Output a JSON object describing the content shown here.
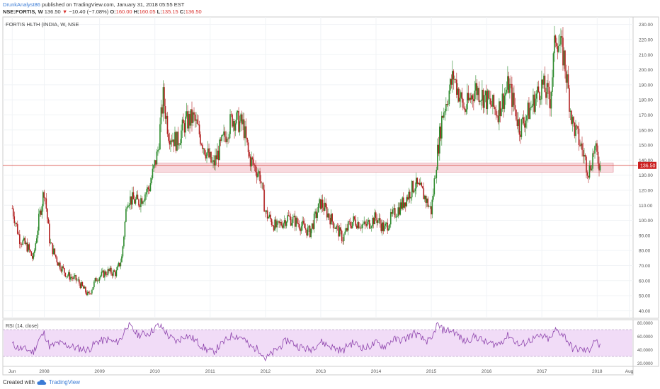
{
  "header": {
    "author": "DrunkAnalyst86",
    "published_text": " published on TradingView.com, January 31, 2018 05:55 EST",
    "symbol": "NSE:FORTIS, W",
    "last": "136.50",
    "change": "−10.40 (−7.08%)",
    "o_label": "O:",
    "o_value": "160.00",
    "h_label": "H:",
    "h_value": "160.05",
    "l_label": "L:",
    "l_value": "135.15",
    "c_label": "C:",
    "c_value": "136.50"
  },
  "footer": {
    "created_with": "Created with",
    "brand": "TradingView"
  },
  "colors": {
    "up": "#2e8b2e",
    "down": "#b22222",
    "rsi_line": "#8e44ad",
    "rsi_band": "#f1dcf7",
    "zone_fill": "#f8dadf",
    "hline": "#d9534f"
  },
  "icons": {
    "footer_logo": "tradingview-cloud-icon",
    "change_arrow": "down-triangle-icon"
  },
  "chart_data": [
    {
      "type": "candlestick",
      "title": "FORTIS HLTH (INDIA, W, NSE",
      "ylim": [
        35,
        235
      ],
      "y_ticks": [
        "40.00",
        "50.00",
        "60.00",
        "70.00",
        "80.00",
        "90.00",
        "100.00",
        "110.00",
        "120.00",
        "130.00",
        "140.00",
        "150.00",
        "160.00",
        "170.00",
        "180.00",
        "190.00",
        "200.00",
        "210.00",
        "220.00",
        "230.00"
      ],
      "x_ticks": [
        "Jun",
        "2008",
        "2009",
        "2010",
        "2011",
        "2012",
        "2013",
        "2014",
        "2015",
        "2016",
        "2017",
        "2018",
        "Aug"
      ],
      "last_price_label": "136.50",
      "horizontal_line": 136.5,
      "support_zone": [
        132,
        138
      ],
      "x": [
        2007.42,
        2007.55,
        2007.7,
        2007.8,
        2007.9,
        2008.0,
        2008.1,
        2008.25,
        2008.4,
        2008.6,
        2008.8,
        2008.95,
        2009.15,
        2009.3,
        2009.4,
        2009.5,
        2009.7,
        2009.9,
        2010.05,
        2010.15,
        2010.25,
        2010.4,
        2010.55,
        2010.7,
        2010.9,
        2011.05,
        2011.2,
        2011.4,
        2011.6,
        2011.7,
        2011.9,
        2012.0,
        2012.2,
        2012.4,
        2012.6,
        2012.8,
        2013.0,
        2013.2,
        2013.4,
        2013.5,
        2013.6,
        2013.8,
        2014.0,
        2014.15,
        2014.3,
        2014.5,
        2014.7,
        2014.85,
        2015.0,
        2015.1,
        2015.2,
        2015.4,
        2015.6,
        2015.8,
        2016.0,
        2016.2,
        2016.4,
        2016.6,
        2016.8,
        2017.0,
        2017.15,
        2017.25,
        2017.4,
        2017.55,
        2017.7,
        2017.85,
        2017.95,
        2018.05
      ],
      "values": [
        108,
        88,
        82,
        74,
        100,
        121,
        85,
        72,
        64,
        60,
        50,
        62,
        66,
        65,
        75,
        115,
        112,
        122,
        145,
        182,
        158,
        152,
        165,
        168,
        148,
        136,
        150,
        168,
        163,
        142,
        130,
        105,
        95,
        102,
        98,
        92,
        112,
        100,
        88,
        96,
        100,
        96,
        102,
        94,
        103,
        112,
        124,
        118,
        106,
        142,
        170,
        196,
        173,
        188,
        180,
        172,
        190,
        161,
        175,
        190,
        180,
        224,
        208,
        165,
        150,
        132,
        148,
        136.5
      ]
    },
    {
      "type": "line",
      "title": "RSI (14, close)",
      "ylim": [
        15,
        85
      ],
      "y_ticks": [
        "20.0000",
        "40.0000",
        "60.0000",
        "80.0000"
      ],
      "band": [
        30,
        70
      ],
      "series": [
        {
          "name": "RSI",
          "x": [
            2007.42,
            2007.55,
            2007.7,
            2007.8,
            2007.9,
            2008.0,
            2008.1,
            2008.25,
            2008.4,
            2008.6,
            2008.8,
            2008.95,
            2009.15,
            2009.3,
            2009.4,
            2009.5,
            2009.7,
            2009.9,
            2010.05,
            2010.15,
            2010.25,
            2010.4,
            2010.55,
            2010.7,
            2010.9,
            2011.05,
            2011.2,
            2011.4,
            2011.6,
            2011.7,
            2011.9,
            2012.0,
            2012.2,
            2012.4,
            2012.6,
            2012.8,
            2013.0,
            2013.2,
            2013.4,
            2013.5,
            2013.6,
            2013.8,
            2014.0,
            2014.15,
            2014.3,
            2014.5,
            2014.7,
            2014.85,
            2015.0,
            2015.1,
            2015.2,
            2015.4,
            2015.6,
            2015.8,
            2016.0,
            2016.2,
            2016.4,
            2016.6,
            2016.8,
            2017.0,
            2017.15,
            2017.25,
            2017.4,
            2017.55,
            2017.7,
            2017.85,
            2017.95,
            2018.05
          ],
          "values": [
            48,
            42,
            40,
            36,
            55,
            65,
            44,
            50,
            47,
            42,
            40,
            52,
            55,
            50,
            58,
            78,
            62,
            65,
            76,
            72,
            60,
            52,
            62,
            56,
            42,
            36,
            48,
            62,
            58,
            45,
            40,
            26,
            40,
            55,
            45,
            40,
            52,
            44,
            38,
            48,
            50,
            42,
            50,
            45,
            55,
            55,
            65,
            55,
            52,
            78,
            70,
            68,
            52,
            60,
            50,
            48,
            62,
            46,
            55,
            60,
            55,
            70,
            62,
            42,
            40,
            38,
            56,
            45
          ]
        }
      ]
    }
  ]
}
